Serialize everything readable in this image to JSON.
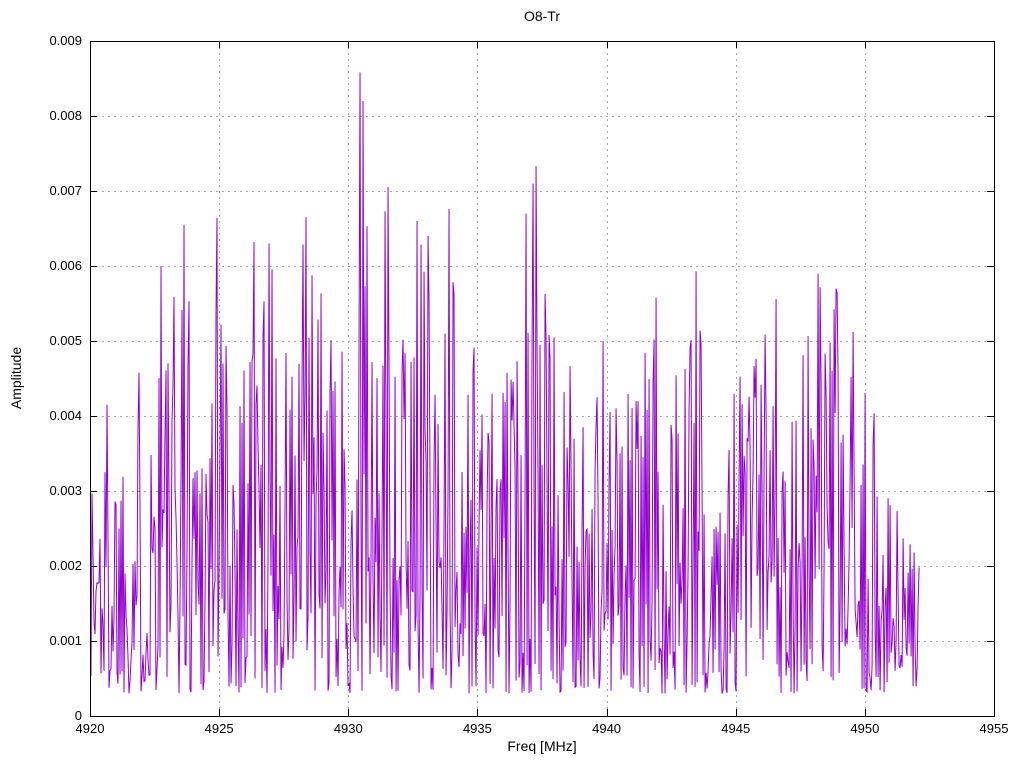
{
  "chart_data": {
    "type": "line",
    "title": "O8-Tr",
    "xlabel": "Freq [MHz]",
    "ylabel": "Amplitude",
    "xlim": [
      4920,
      4955
    ],
    "ylim": [
      0,
      0.009
    ],
    "xticks": [
      4920,
      4925,
      4930,
      4935,
      4940,
      4945,
      4950,
      4955
    ],
    "xtick_labels": [
      "4920",
      "4925",
      "4930",
      "4935",
      "4940",
      "4945",
      "4950",
      "4955"
    ],
    "yticks": [
      0,
      0.001,
      0.002,
      0.003,
      0.004,
      0.005,
      0.006,
      0.007,
      0.008,
      0.009
    ],
    "ytick_labels": [
      "0",
      "0.001",
      "0.002",
      "0.003",
      "0.004",
      "0.005",
      "0.006",
      "0.007",
      "0.008",
      "0.009"
    ],
    "grid": {
      "visible": true,
      "style": "dashed",
      "color": "#a8a8a8"
    },
    "legend": "none",
    "background": "#ffffff",
    "border_color": "#000000",
    "line_color": "#9400d3",
    "series": {
      "name": "O8-Tr",
      "x_start": 4920.0,
      "x_end": 4952.1,
      "n_points": 830,
      "noise_floor": 0.0003,
      "seed": 1337,
      "spread_exponent": 1.65,
      "envelope": [
        [
          4920.0,
          0.004
        ],
        [
          4920.7,
          0.0047
        ],
        [
          4921.4,
          0.0044
        ],
        [
          4922.0,
          0.005
        ],
        [
          4922.6,
          0.006
        ],
        [
          4923.2,
          0.0058
        ],
        [
          4923.7,
          0.0066
        ],
        [
          4924.3,
          0.0053
        ],
        [
          4924.9,
          0.0066
        ],
        [
          4925.5,
          0.0053
        ],
        [
          4926.2,
          0.0063
        ],
        [
          4926.9,
          0.0063
        ],
        [
          4927.6,
          0.0052
        ],
        [
          4928.3,
          0.0066
        ],
        [
          4928.9,
          0.0063
        ],
        [
          4929.5,
          0.0046
        ],
        [
          4930.1,
          0.0056
        ],
        [
          4930.5,
          0.0072
        ],
        [
          4931.0,
          0.0058
        ],
        [
          4931.5,
          0.0069
        ],
        [
          4932.1,
          0.0059
        ],
        [
          4932.7,
          0.0065
        ],
        [
          4933.3,
          0.006
        ],
        [
          4933.9,
          0.0067
        ],
        [
          4934.5,
          0.0054
        ],
        [
          4935.1,
          0.0053
        ],
        [
          4935.7,
          0.0044
        ],
        [
          4936.3,
          0.0048
        ],
        [
          4936.9,
          0.0066
        ],
        [
          4937.2,
          0.0072
        ],
        [
          4937.7,
          0.0056
        ],
        [
          4938.4,
          0.0048
        ],
        [
          4939.1,
          0.0043
        ],
        [
          4939.8,
          0.005
        ],
        [
          4940.5,
          0.0044
        ],
        [
          4941.2,
          0.0047
        ],
        [
          4941.9,
          0.0056
        ],
        [
          4942.6,
          0.0047
        ],
        [
          4943.4,
          0.0058
        ],
        [
          4944.1,
          0.0044
        ],
        [
          4944.8,
          0.0047
        ],
        [
          4945.5,
          0.0053
        ],
        [
          4946.2,
          0.0056
        ],
        [
          4946.9,
          0.0047
        ],
        [
          4947.6,
          0.0052
        ],
        [
          4948.2,
          0.0058
        ],
        [
          4948.9,
          0.0057
        ],
        [
          4949.5,
          0.0052
        ],
        [
          4950.0,
          0.0044
        ],
        [
          4950.4,
          0.0043
        ],
        [
          4950.8,
          0.0034
        ],
        [
          4951.2,
          0.0029
        ],
        [
          4951.6,
          0.0026
        ],
        [
          4952.1,
          0.0022
        ]
      ],
      "notable_peaks": [
        [
          4930.46,
          0.00858
        ],
        [
          4930.56,
          0.0082
        ],
        [
          4931.54,
          0.00705
        ],
        [
          4937.28,
          0.00733
        ],
        [
          4937.15,
          0.0071
        ],
        [
          4936.87,
          0.0067
        ],
        [
          4933.9,
          0.00676
        ],
        [
          4928.35,
          0.00665
        ],
        [
          4923.65,
          0.00655
        ],
        [
          4924.93,
          0.00664
        ],
        [
          4926.35,
          0.00632
        ],
        [
          4926.95,
          0.0063
        ],
        [
          4922.75,
          0.006
        ],
        [
          4932.65,
          0.0066
        ],
        [
          4933.1,
          0.0064
        ],
        [
          4943.45,
          0.00593
        ],
        [
          4948.2,
          0.0059
        ],
        [
          4948.9,
          0.0057
        ],
        [
          4946.55,
          0.00556
        ],
        [
          4941.9,
          0.00558
        ],
        [
          4939.85,
          0.005
        ]
      ]
    }
  }
}
